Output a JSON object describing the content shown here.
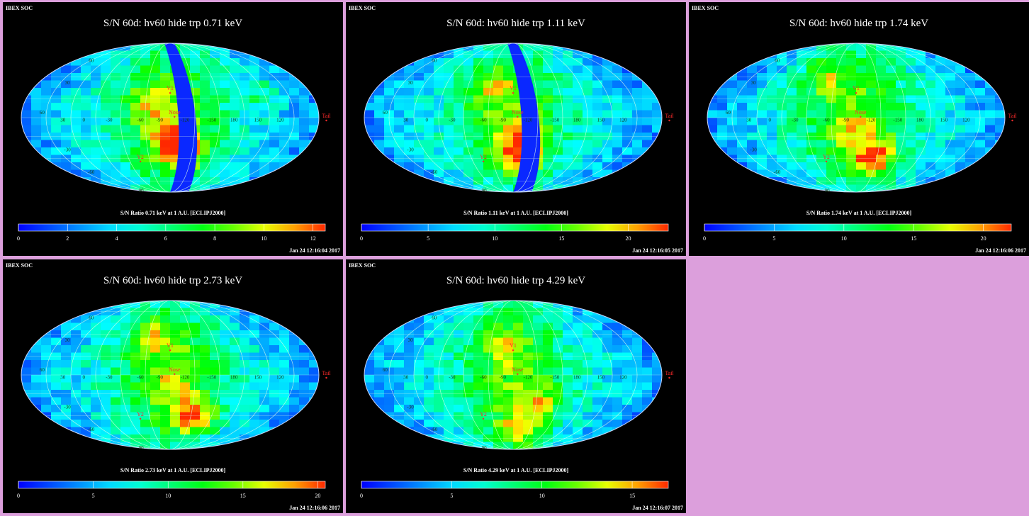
{
  "colors": {
    "page_background": "#dc9fdc",
    "panel_background": "#000000",
    "marker": "#ff2a2a",
    "hidden_band": "#0a28ff"
  },
  "chart_data": [
    {
      "type": "heatmap",
      "projection": "mollweide",
      "header": "IBEX SOC",
      "title": "S/N  60d: hv60 hide trp 0.71 keV",
      "colorbar_label": "S/N Ratio 0.71 keV at 1 A.U. [ECLIPJ2000]",
      "colorbar_range": [
        0,
        12.5
      ],
      "colorbar_ticks": [
        "0",
        "2",
        "4",
        "6",
        "8",
        "10",
        "12"
      ],
      "timestamp": "Jan 24 12:16:04 2017",
      "hidden_band": true,
      "hotspots": [
        {
          "lon": 0.08,
          "lat": -0.45,
          "value": 11.0
        },
        {
          "lon": 0.0,
          "lat": -0.25,
          "value": 9.5
        },
        {
          "lon": -0.14,
          "lat": 0.18,
          "value": 8.5
        },
        {
          "lon": 0.62,
          "lat": 0.35,
          "value": 7.5
        }
      ]
    },
    {
      "type": "heatmap",
      "projection": "mollweide",
      "header": "IBEX SOC",
      "title": "S/N  60d: hv60 hide trp 1.11 keV",
      "colorbar_label": "S/N Ratio 1.11 keV at 1 A.U. [ECLIPJ2000]",
      "colorbar_range": [
        0,
        23
      ],
      "colorbar_ticks": [
        "0",
        "5",
        "10",
        "15",
        "20"
      ],
      "timestamp": "Jan 24 12:16:05 2017",
      "hidden_band": true,
      "hotspots": [
        {
          "lon": 0.05,
          "lat": -0.5,
          "value": 19.5
        },
        {
          "lon": -0.14,
          "lat": 0.4,
          "value": 16.0
        },
        {
          "lon": 0.0,
          "lat": -0.2,
          "value": 14.5
        }
      ]
    },
    {
      "type": "heatmap",
      "projection": "mollweide",
      "header": "IBEX SOC",
      "title": "S/N  60d: hv60 hide trp 1.74 keV",
      "colorbar_label": "S/N Ratio 1.74 keV at 1 A.U. [ECLIPJ2000]",
      "colorbar_range": [
        0,
        22
      ],
      "colorbar_ticks": [
        "0",
        "5",
        "10",
        "15",
        "20"
      ],
      "timestamp": "Jan 24 12:16:06 2017",
      "hidden_band": false,
      "hotspots": [
        {
          "lon": 0.12,
          "lat": -0.55,
          "value": 20.5
        },
        {
          "lon": -0.22,
          "lat": 0.55,
          "value": 15.5
        },
        {
          "lon": 0.0,
          "lat": -0.2,
          "value": 14.0
        }
      ]
    },
    {
      "type": "heatmap",
      "projection": "mollweide",
      "header": "IBEX SOC",
      "title": "S/N  60d: hv60 hide trp 2.73 keV",
      "colorbar_label": "S/N Ratio 2.73 keV at 1 A.U. [ECLIPJ2000]",
      "colorbar_range": [
        0,
        20.5
      ],
      "colorbar_ticks": [
        "0",
        "5",
        "10",
        "15",
        "20"
      ],
      "timestamp": "Jan 24 12:16:06 2017",
      "hidden_band": false,
      "hotspots": [
        {
          "lon": 0.16,
          "lat": -0.55,
          "value": 19.0
        },
        {
          "lon": -0.1,
          "lat": 0.5,
          "value": 14.0
        },
        {
          "lon": 0.0,
          "lat": -0.1,
          "value": 13.0
        }
      ]
    },
    {
      "type": "heatmap",
      "projection": "mollweide",
      "header": "IBEX SOC",
      "title": "S/N  60d: hv60 hide trp 4.29 keV",
      "colorbar_label": "S/N Ratio 4.29 keV at 1 A.U. [ECLIPJ2000]",
      "colorbar_range": [
        0,
        17
      ],
      "colorbar_ticks": [
        "0",
        "5",
        "10",
        "15"
      ],
      "timestamp": "Jan 24 12:16:07 2017",
      "hidden_band": false,
      "hotspots": [
        {
          "lon": 0.05,
          "lat": -0.75,
          "value": 13.5
        },
        {
          "lon": 0.18,
          "lat": -0.4,
          "value": 12.0
        },
        {
          "lon": -0.05,
          "lat": 0.4,
          "value": 11.0
        }
      ]
    }
  ],
  "map_labels": [
    {
      "text": "60",
      "lon": -0.53,
      "lat": 0.75
    },
    {
      "text": "30",
      "lon": -0.69,
      "lat": 0.45
    },
    {
      "text": "60",
      "lon": -0.86,
      "lat": 0.05
    },
    {
      "text": "30",
      "lon": -0.72,
      "lat": -0.05
    },
    {
      "text": "0",
      "lon": -0.58,
      "lat": -0.05
    },
    {
      "text": "-30",
      "lon": -0.41,
      "lat": -0.05
    },
    {
      "text": "-60",
      "lon": -0.2,
      "lat": -0.05
    },
    {
      "text": "-90",
      "lon": -0.07,
      "lat": -0.05
    },
    {
      "text": "-120",
      "lon": 0.1,
      "lat": -0.05
    },
    {
      "text": "-150",
      "lon": 0.28,
      "lat": -0.05
    },
    {
      "text": "180",
      "lon": 0.43,
      "lat": -0.05
    },
    {
      "text": "150",
      "lon": 0.59,
      "lat": -0.05
    },
    {
      "text": "120",
      "lon": 0.74,
      "lat": -0.05
    },
    {
      "text": "-30",
      "lon": -0.69,
      "lat": -0.45
    },
    {
      "text": "-60",
      "lon": -0.53,
      "lat": -0.75
    },
    {
      "text": "-90",
      "lon": -0.2,
      "lat": -1.0
    }
  ],
  "markers": [
    {
      "text": "V1",
      "lon": 0.0,
      "lat": 0.37
    },
    {
      "text": "Nose",
      "lon": 0.03,
      "lat": 0.05
    },
    {
      "text": "Y2",
      "lon": -0.2,
      "lat": -0.55
    },
    {
      "text": "Tail",
      "lon": 1.05,
      "lat": 0.0
    }
  ]
}
